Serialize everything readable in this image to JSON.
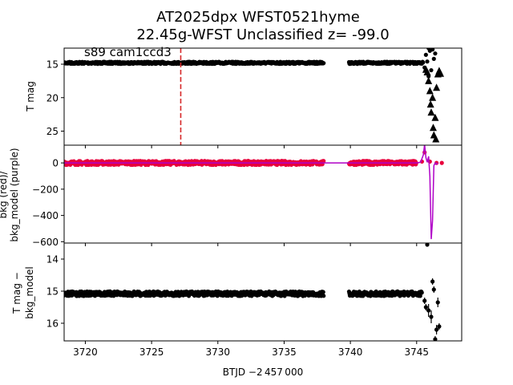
{
  "figure": {
    "title_line1": "AT2025dpx  WFST0521hyme",
    "title_line2": "22.45g-WFST Unclassified z= -99.0",
    "annotation": "s89 cam1ccd3",
    "xlabel": "BTJD −2 457 000"
  },
  "chart_data": [
    {
      "type": "scatter",
      "panel": "top",
      "ylabel": "T mag",
      "xlim": [
        3718.4,
        3748.4
      ],
      "ylim": [
        27.1,
        12.6
      ],
      "y_inverted": true,
      "xticks": [
        3720,
        3725,
        3730,
        3735,
        3740,
        3745
      ],
      "yticks": [
        15,
        20,
        25
      ],
      "vline_x": 3727.2,
      "vline_color": "#d62728",
      "segments": [
        {
          "x0": 3718.3,
          "x1": 3738.0,
          "y": 14.8,
          "jitter": 0.15
        },
        {
          "x0": 3739.9,
          "x1": 3745.5,
          "y": 14.8,
          "jitter": 0.15
        }
      ],
      "tail_points": [
        [
          3745.6,
          15.5
        ],
        [
          3745.7,
          13.6
        ],
        [
          3745.8,
          14.6
        ],
        [
          3745.9,
          16.8
        ],
        [
          3746.0,
          13.0
        ],
        [
          3746.1,
          15.9
        ],
        [
          3746.2,
          12.8
        ],
        [
          3746.3,
          14.2
        ],
        [
          3746.4,
          13.4
        ],
        [
          3745.9,
          12.6
        ]
      ],
      "triangle_points": [
        [
          3745.7,
          15.8
        ],
        [
          3745.8,
          16.2
        ],
        [
          3745.9,
          17.5
        ],
        [
          3746.0,
          19.0
        ],
        [
          3746.05,
          21.0
        ],
        [
          3746.1,
          22.2
        ],
        [
          3746.2,
          20.0
        ],
        [
          3746.25,
          24.5
        ],
        [
          3746.3,
          25.6
        ],
        [
          3746.4,
          23.0
        ],
        [
          3746.45,
          26.2
        ],
        [
          3746.5,
          18.5
        ],
        [
          3746.6,
          16.5
        ],
        [
          3746.7,
          16.0
        ],
        [
          3746.8,
          16.4
        ]
      ]
    },
    {
      "type": "line",
      "panel": "middle",
      "ylabel_line1": "bkg (red)/",
      "ylabel_line2": "bkg_model (purple)",
      "xlim": [
        3718.4,
        3748.4
      ],
      "ylim": [
        -610,
        135
      ],
      "yticks": [
        0,
        -200,
        -400,
        -600
      ],
      "bkg_color": "#e8003c",
      "model_color": "#b000c8",
      "bkg_segments": [
        {
          "x0": 3718.3,
          "x1": 3738.0,
          "y": 0,
          "jitter": 15
        },
        {
          "x0": 3739.9,
          "x1": 3745.0,
          "y": 0,
          "jitter": 15
        }
      ],
      "model_line": [
        [
          3718.3,
          0
        ],
        [
          3738.0,
          0
        ],
        [
          3739.9,
          0
        ],
        [
          3745.0,
          0
        ],
        [
          3745.3,
          5
        ],
        [
          3745.5,
          60
        ],
        [
          3745.6,
          140
        ],
        [
          3745.7,
          40
        ],
        [
          3745.8,
          5
        ],
        [
          3745.9,
          50
        ],
        [
          3746.0,
          -100
        ],
        [
          3746.1,
          -580
        ],
        [
          3746.2,
          -440
        ],
        [
          3746.3,
          -20
        ],
        [
          3746.4,
          0
        ],
        [
          3746.5,
          -10
        ],
        [
          3746.6,
          0
        ]
      ],
      "bkg_tail": [
        [
          3745.4,
          10
        ],
        [
          3745.6,
          80
        ],
        [
          3746.0,
          10
        ],
        [
          3746.5,
          0
        ],
        [
          3746.9,
          0
        ]
      ]
    },
    {
      "type": "scatter",
      "panel": "bottom",
      "ylabel_line1": "T mag −",
      "ylabel_line2": "bkg_model",
      "xlim": [
        3718.4,
        3748.4
      ],
      "ylim": [
        16.55,
        13.5
      ],
      "y_inverted": true,
      "yticks": [
        14,
        15,
        16
      ],
      "segments": [
        {
          "x0": 3718.3,
          "x1": 3738.0,
          "y": 15.08,
          "jitter": 0.07
        },
        {
          "x0": 3739.9,
          "x1": 3745.4,
          "y": 15.08,
          "jitter": 0.07
        }
      ],
      "error_points": [
        [
          3745.6,
          15.3,
          0.1
        ],
        [
          3745.7,
          15.5,
          0.1
        ],
        [
          3745.8,
          13.55,
          0.05
        ],
        [
          3745.9,
          15.6,
          0.2
        ],
        [
          3746.1,
          15.8,
          0.2
        ],
        [
          3746.2,
          14.7,
          0.1
        ],
        [
          3746.3,
          14.95,
          0.1
        ],
        [
          3746.4,
          16.5,
          0.1
        ],
        [
          3746.5,
          16.2,
          0.15
        ],
        [
          3746.6,
          15.35,
          0.15
        ],
        [
          3746.7,
          16.1,
          0.1
        ]
      ]
    }
  ]
}
